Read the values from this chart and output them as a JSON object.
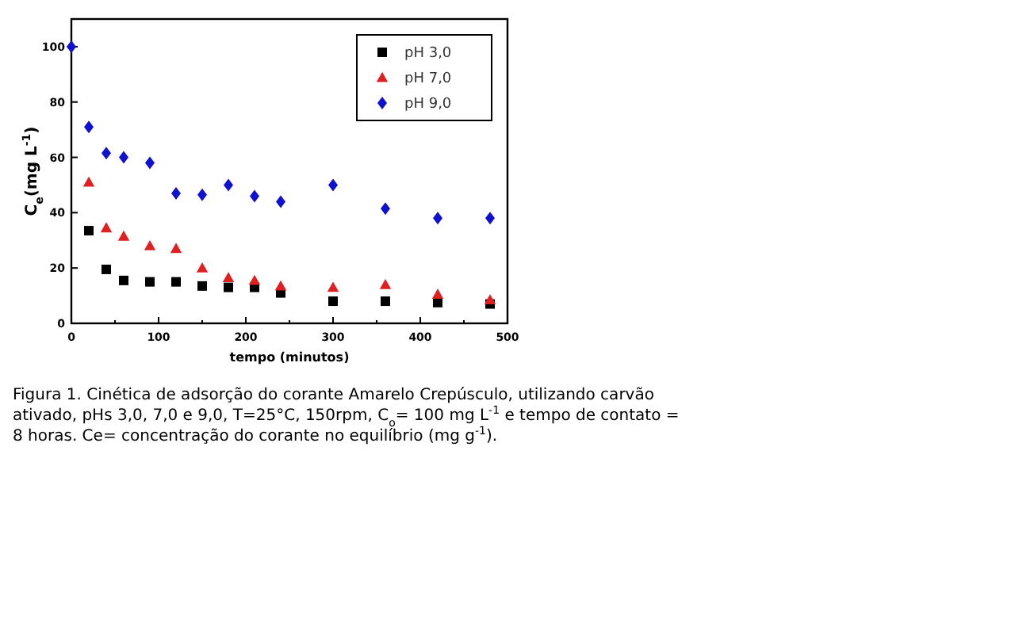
{
  "chart_data": {
    "type": "scatter",
    "xlabel": "tempo (minutos)",
    "ylabel": "C$_{e}$(mg L$^{-1}$)",
    "x": [
      0,
      20,
      40,
      60,
      90,
      120,
      150,
      180,
      210,
      240,
      300,
      360,
      420,
      480
    ],
    "series": [
      {
        "name": "pH 3,0",
        "color": "#000000",
        "marker": "square",
        "values": [
          null,
          33.5,
          19.5,
          15.5,
          15,
          15,
          13.5,
          13,
          13,
          11,
          8,
          8,
          7.5,
          7
        ]
      },
      {
        "name": "pH 7,0",
        "color": "#e02020",
        "marker": "triangle",
        "values": [
          null,
          51,
          34.5,
          31.5,
          28,
          27,
          20,
          16.5,
          15.5,
          13.5,
          13,
          14,
          10.5,
          8.5
        ]
      },
      {
        "name": "pH 9,0",
        "color": "#1010d0",
        "marker": "diamond",
        "values": [
          100,
          71,
          61.5,
          60,
          58,
          47,
          46.5,
          50,
          46,
          44,
          50,
          41.5,
          38,
          38
        ]
      }
    ],
    "xlim": [
      0,
      500
    ],
    "xticks": [
      0,
      100,
      200,
      300,
      400,
      500
    ],
    "ylim": [
      0,
      110
    ],
    "yticks": [
      0,
      20,
      40,
      60,
      80,
      100
    ],
    "legend": "top right",
    "grid": false,
    "annotations": [
      "Figura 1. Cinética de adsorção do corante Amarelo Crepúsculo, utilizando carvão ativado, pHs 3,0, 7,0 e 9,0, T=25°C, 150rpm, C$_{o}$= 100 mg L$^{-1}$ e tempo de contato = 8 horas.  Ce= concentração do corante no equilíbrio (mg g$^{-1}$)."
    ]
  }
}
